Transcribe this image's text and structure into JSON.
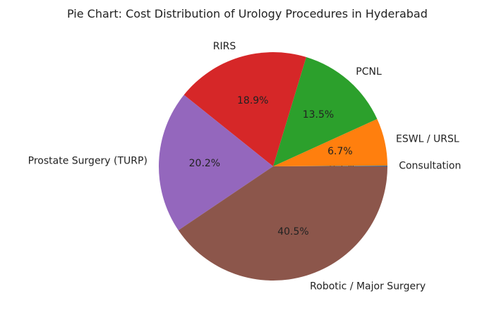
{
  "chart_data": {
    "type": "pie",
    "title": "Pie Chart: Cost Distribution of Urology Procedures in Hyderabad",
    "start_angle_deg": 0,
    "direction": "counterclockwise",
    "slices": [
      {
        "label": "Consultation",
        "value": 0.1,
        "pct_label": "0.1%",
        "color": "#1f77b4"
      },
      {
        "label": "ESWL / URSL",
        "value": 6.7,
        "pct_label": "6.7%",
        "color": "#ff7f0e"
      },
      {
        "label": "PCNL",
        "value": 13.5,
        "pct_label": "13.5%",
        "color": "#2ca02c"
      },
      {
        "label": "RIRS",
        "value": 18.9,
        "pct_label": "18.9%",
        "color": "#d62728"
      },
      {
        "label": "Prostate Surgery (TURP)",
        "value": 20.2,
        "pct_label": "20.2%",
        "color": "#9467bd"
      },
      {
        "label": "Robotic / Major Surgery",
        "value": 40.5,
        "pct_label": "40.5%",
        "color": "#8c564b"
      }
    ]
  }
}
